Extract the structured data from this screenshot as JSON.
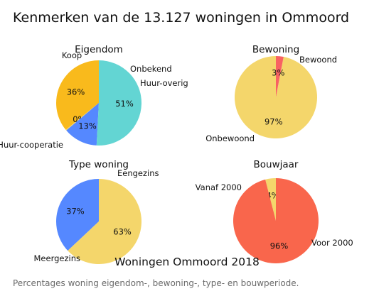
{
  "title": "Kenmerken van de 13.127 woningen in Ommoord",
  "figure_title": "Woningen Ommoord 2018",
  "caption": "Percentages woning eigendom-, bewoning-, type- en bouwperiode.",
  "chart_data": [
    {
      "type": "pie",
      "title": "Eigendom",
      "start_angle": 90,
      "slices": [
        {
          "label": "Koop",
          "value": 36,
          "pct_label": "36%",
          "color": "#F9BA1C"
        },
        {
          "label": "Onbekend",
          "value": 0.3,
          "pct_label": "0%",
          "color": "#F4D66B"
        },
        {
          "label": "Huur-overig",
          "value": 13,
          "pct_label": "13%",
          "color": "#5588FF"
        },
        {
          "label": "Huur-cooperatie",
          "value": 51,
          "pct_label": "51%",
          "color": "#63D5D3"
        }
      ]
    },
    {
      "type": "pie",
      "title": "Bewoning",
      "start_angle": 90,
      "slices": [
        {
          "label": "Bewoond",
          "value": 97,
          "pct_label": "97%",
          "color": "#F4D66B"
        },
        {
          "label": "Onbewoond",
          "value": 3,
          "pct_label": "3%",
          "color": "#F86262"
        }
      ]
    },
    {
      "type": "pie",
      "title": "Type woning",
      "start_angle": 90,
      "slices": [
        {
          "label": "Eengezins",
          "value": 37,
          "pct_label": "37%",
          "color": "#5588FF"
        },
        {
          "label": "Meergezins",
          "value": 63,
          "pct_label": "63%",
          "color": "#F4D66B"
        }
      ]
    },
    {
      "type": "pie",
      "title": "Bouwjaar",
      "start_angle": 90,
      "slices": [
        {
          "label": "Vanaf 2000",
          "value": 4,
          "pct_label": "4%",
          "color": "#F4D66B"
        },
        {
          "label": "Voor 2000",
          "value": 96,
          "pct_label": "96%",
          "color": "#F9664C"
        }
      ]
    }
  ]
}
